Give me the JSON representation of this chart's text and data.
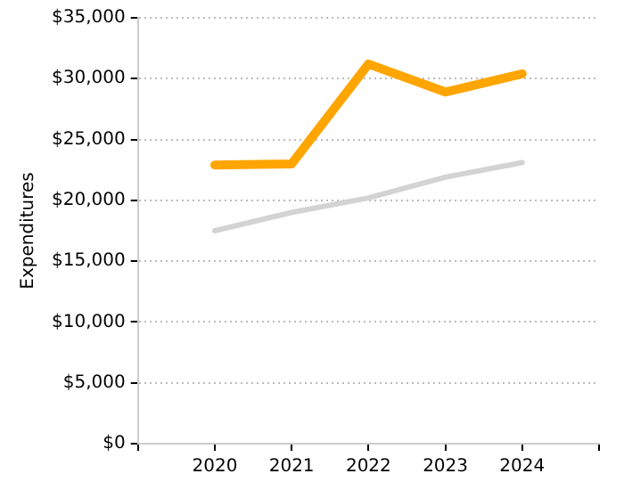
{
  "chart_data": {
    "type": "line",
    "ylabel": "Expenditures",
    "x": [
      2020,
      2021,
      2022,
      2023,
      2024
    ],
    "xlim": [
      2019,
      2025
    ],
    "xticks": [
      {
        "value": 2019,
        "label": null
      },
      2020,
      2021,
      2022,
      2023,
      2024,
      {
        "value": 2025,
        "label": null
      }
    ],
    "ylim": [
      0,
      35000
    ],
    "yticks": [
      {
        "value": 0,
        "label": "$0"
      },
      {
        "value": 5000,
        "label": "$5,000"
      },
      {
        "value": 10000,
        "label": "$10,000"
      },
      {
        "value": 15000,
        "label": "$15,000"
      },
      {
        "value": 20000,
        "label": "$20,000"
      },
      {
        "value": 25000,
        "label": "$25,000"
      },
      {
        "value": 30000,
        "label": "$30,000"
      },
      {
        "value": 35000,
        "label": "$35,000"
      }
    ],
    "series": [
      {
        "color": "#d3d3d3",
        "values": [
          17500,
          19000,
          20200,
          21900,
          23100
        ]
      },
      {
        "color": "#ffa500",
        "values": [
          22900,
          23000,
          31200,
          28900,
          30400
        ]
      }
    ],
    "grid": "y",
    "legend": false,
    "marker": "none",
    "line_style": "solid"
  }
}
